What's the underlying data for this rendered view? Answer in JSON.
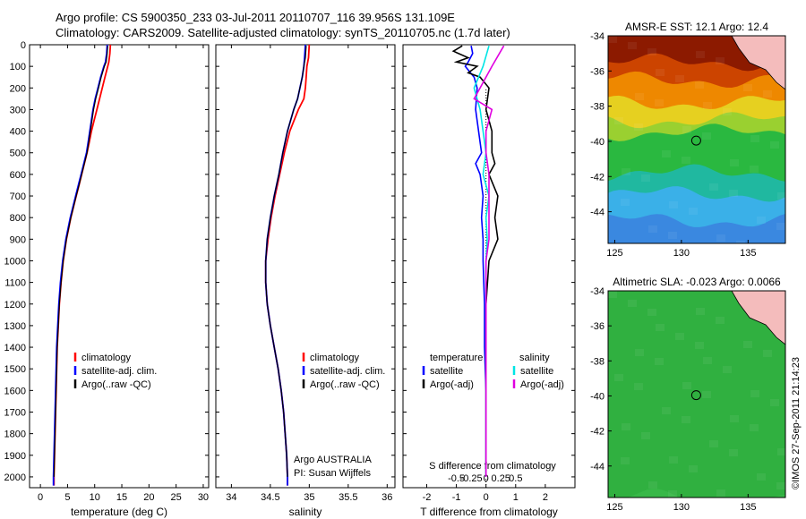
{
  "header": {
    "line1": "Argo profile: CS 5900350_233 03-Jul-2011 20110707_116 39.956S 131.109E",
    "line2": "Climatology: CARS2009. Satellite-adjusted climatology: synTS_20110705.nc (1.7d later)"
  },
  "credit": "©IMOS 27-Sep-2011 21:14:23",
  "colors": {
    "clim": "#ff0000",
    "sat": "#0000ff",
    "argo": "#000000",
    "sal_sat": "#00e5e5",
    "sal_argo": "#e000e0"
  },
  "chart_data": [
    {
      "type": "line",
      "id": "temp",
      "xlabel": "temperature (deg C)",
      "xlim": [
        -2,
        31
      ],
      "ylim": [
        0,
        2050
      ],
      "xticks": [
        0,
        5,
        10,
        15,
        20,
        25,
        30
      ],
      "xticklabels": [
        "0",
        "5",
        "10",
        "15",
        "20",
        "25",
        "30"
      ],
      "yticks": [
        0,
        100,
        200,
        300,
        400,
        500,
        600,
        700,
        800,
        900,
        1000,
        1100,
        1200,
        1300,
        1400,
        1500,
        1600,
        1700,
        1800,
        1900,
        2000
      ],
      "legend": [
        "climatology",
        "satellite-adj. clim.",
        "Argo(..raw -QC)"
      ],
      "annotations": [],
      "series": [
        {
          "name": "climatology",
          "color": "#ff0000",
          "depth": [
            0,
            40,
            80,
            100,
            150,
            200,
            250,
            300,
            350,
            400,
            450,
            500,
            550,
            600,
            650,
            700,
            800,
            900,
            1000,
            1100,
            1200,
            1300,
            1400,
            1500,
            1600,
            1700,
            1800,
            1900,
            2000,
            2040
          ],
          "values": [
            12.9,
            12.8,
            12.6,
            12.4,
            11.9,
            11.4,
            10.9,
            10.4,
            9.9,
            9.4,
            9.0,
            8.6,
            8.1,
            7.6,
            7.1,
            6.6,
            5.6,
            4.8,
            4.2,
            3.8,
            3.5,
            3.3,
            3.1,
            3.0,
            2.9,
            2.8,
            2.7,
            2.6,
            2.5,
            2.5
          ]
        },
        {
          "name": "satellite-adj. clim.",
          "color": "#0000ff",
          "depth": [
            0,
            40,
            80,
            100,
            150,
            200,
            250,
            300,
            350,
            400,
            450,
            500,
            550,
            600,
            650,
            700,
            800,
            900,
            1000,
            1100,
            1200,
            1300,
            1400,
            1500,
            1600,
            1700,
            1800,
            1900,
            2000,
            2040
          ],
          "values": [
            12.3,
            12.2,
            12.0,
            11.7,
            11.1,
            10.6,
            10.1,
            9.7,
            9.4,
            9.1,
            8.8,
            8.5,
            8.0,
            7.5,
            7.0,
            6.5,
            5.5,
            4.7,
            4.1,
            3.7,
            3.4,
            3.2,
            3.0,
            2.9,
            2.8,
            2.7,
            2.6,
            2.5,
            2.4,
            2.4
          ]
        },
        {
          "name": "Argo(..raw -QC)",
          "color": "#000000",
          "depth": [
            5,
            40,
            80,
            100,
            150,
            200,
            250,
            300,
            350,
            400,
            450,
            500,
            550,
            600,
            650,
            700,
            800,
            900,
            1000,
            1100,
            1200,
            1300,
            1400,
            1500,
            1600,
            1700,
            1800,
            1900,
            2000
          ],
          "values": [
            12.4,
            12.3,
            12.1,
            11.8,
            11.2,
            10.7,
            10.2,
            9.8,
            9.5,
            9.2,
            8.9,
            8.6,
            8.1,
            7.6,
            7.1,
            6.6,
            5.6,
            4.8,
            4.2,
            3.8,
            3.5,
            3.3,
            3.1,
            3.0,
            2.9,
            2.8,
            2.7,
            2.6,
            2.5
          ]
        }
      ]
    },
    {
      "type": "line",
      "id": "sal",
      "xlabel": "salinity",
      "xlim": [
        33.8,
        36.1
      ],
      "ylim": [
        0,
        2050
      ],
      "xticks": [
        34,
        34.5,
        35,
        35.5,
        36
      ],
      "xticklabels": [
        "34",
        "34.5",
        "35",
        "35.5",
        "36"
      ],
      "legend": [
        "climatology",
        "satellite-adj. clim.",
        "Argo(..raw -QC)"
      ],
      "annotations": [
        "Argo AUSTRALIA",
        "PI: Susan Wijffels"
      ],
      "series": [
        {
          "name": "climatology",
          "color": "#ff0000",
          "depth": [
            0,
            60,
            100,
            150,
            200,
            250,
            300,
            400,
            500,
            600,
            700,
            800,
            900,
            1000,
            1100,
            1200,
            1300,
            1400,
            1500,
            1600,
            1700,
            1800,
            1900,
            2000,
            2040
          ],
          "values": [
            35.0,
            34.99,
            34.97,
            34.96,
            34.95,
            34.93,
            34.86,
            34.75,
            34.68,
            34.62,
            34.56,
            34.51,
            34.47,
            34.44,
            34.44,
            34.46,
            34.5,
            34.55,
            34.6,
            34.64,
            34.67,
            34.69,
            34.71,
            34.72,
            34.72
          ]
        },
        {
          "name": "satellite-adj. clim.",
          "color": "#0000ff",
          "depth": [
            0,
            60,
            100,
            150,
            200,
            250,
            300,
            400,
            500,
            600,
            700,
            800,
            900,
            1000,
            1100,
            1200,
            1300,
            1400,
            1500,
            1600,
            1700,
            1800,
            1900,
            2000,
            2040
          ],
          "values": [
            34.95,
            34.94,
            34.93,
            34.91,
            34.88,
            34.85,
            34.8,
            34.72,
            34.66,
            34.61,
            34.55,
            34.5,
            34.46,
            34.44,
            34.44,
            34.46,
            34.5,
            34.55,
            34.6,
            34.64,
            34.67,
            34.69,
            34.71,
            34.72,
            34.72
          ]
        },
        {
          "name": "Argo(..raw -QC)",
          "color": "#000000",
          "depth": [
            5,
            60,
            100,
            150,
            200,
            250,
            300,
            400,
            500,
            600,
            700,
            800,
            900,
            1000,
            1100,
            1200,
            1300,
            1400,
            1500,
            1600,
            1700,
            1800,
            1900,
            2000
          ],
          "values": [
            34.96,
            34.95,
            34.93,
            34.91,
            34.88,
            34.85,
            34.8,
            34.72,
            34.66,
            34.61,
            34.55,
            34.5,
            34.46,
            34.44,
            34.44,
            34.46,
            34.5,
            34.55,
            34.6,
            34.64,
            34.67,
            34.69,
            34.71,
            34.72
          ]
        }
      ]
    },
    {
      "type": "line",
      "id": "diff",
      "xlabel": "T difference from climatology",
      "top_label": "S difference from climatology",
      "xlim": [
        -2.8,
        3.0
      ],
      "ylim": [
        0,
        2050
      ],
      "xticks": [
        -2,
        -1,
        0,
        1,
        2
      ],
      "xticklabels": [
        "-2",
        "-1",
        "0",
        "1",
        "2"
      ],
      "sxticks": [
        -0.5,
        -0.25,
        0,
        0.25,
        0.5
      ],
      "sxticklabels": [
        "-0.5",
        "-0.25",
        "0",
        "0.25",
        "0.5"
      ],
      "legend_temp": [
        "temperature",
        "satellite",
        "Argo(-adj)"
      ],
      "legend_sal": [
        "salinity",
        "satellite",
        "Argo(-adj)"
      ],
      "series": [
        {
          "name": "satellite",
          "color": "#0000ff",
          "depth": [
            5,
            40,
            80,
            100,
            150,
            200,
            300,
            400,
            500,
            550,
            600,
            700,
            800,
            900,
            1000,
            1200,
            1400,
            1600,
            1800,
            2000
          ],
          "values": [
            -0.5,
            -0.45,
            -0.6,
            -0.7,
            -0.4,
            -0.3,
            -0.35,
            -0.25,
            -0.15,
            -0.35,
            -0.2,
            -0.1,
            -0.15,
            -0.1,
            -0.1,
            -0.05,
            -0.05,
            0.0,
            0.0,
            0.0
          ]
        },
        {
          "name": "Argo(-adj)",
          "color": "#000000",
          "depth": [
            5,
            30,
            60,
            80,
            100,
            130,
            150,
            200,
            300,
            400,
            500,
            550,
            600,
            700,
            800,
            900,
            1000,
            1200,
            1400,
            1600,
            1800,
            2000
          ],
          "values": [
            -0.8,
            -1.1,
            -0.6,
            -1.0,
            -0.3,
            -0.6,
            -0.2,
            0.1,
            0.0,
            0.2,
            0.2,
            0.3,
            0.1,
            0.4,
            0.3,
            0.4,
            0.1,
            0.0,
            0.0,
            0.0,
            0.0,
            0.0
          ]
        },
        {
          "name": "salinity satellite",
          "color": "#00e5e5",
          "depth": [
            5,
            100,
            200,
            300,
            400,
            500,
            600,
            700,
            800,
            900,
            1000,
            1200,
            1500,
            2000
          ],
          "values": [
            0.05,
            -0.05,
            -0.2,
            -0.1,
            -0.05,
            0.0,
            -0.05,
            0.05,
            0.0,
            0.02,
            0.0,
            0.0,
            0.0,
            0.0
          ]
        },
        {
          "name": "salinity Argo(-adj)",
          "color": "#e000e0",
          "depth": [
            5,
            100,
            200,
            250,
            300,
            400,
            500,
            600,
            700,
            800,
            900,
            1000,
            1200,
            1500,
            2000
          ],
          "values": [
            0.3,
            0.1,
            -0.1,
            -0.2,
            0.1,
            0.0,
            0.0,
            0.05,
            0.05,
            0.05,
            0.05,
            0.0,
            0.0,
            0.0,
            0.0
          ]
        }
      ]
    },
    {
      "type": "heatmap",
      "id": "sst",
      "title": "AMSR-E SST: 12.1 Argo: 12.4",
      "xlim": [
        124.5,
        137.8
      ],
      "ylim": [
        -45.8,
        -34
      ],
      "xticks": [
        125,
        130,
        135
      ],
      "xticklabels": [
        "125",
        "130",
        "135"
      ],
      "yticks": [
        -34,
        -36,
        -38,
        -40,
        -42,
        -44
      ],
      "yticklabels": [
        "-34",
        "-36",
        "-38",
        "-40",
        "-42",
        "-44"
      ],
      "marker": {
        "lon": 131.109,
        "lat": -39.956
      },
      "bands": [
        {
          "lat_max": -34.0,
          "color": "#8c1a00"
        },
        {
          "lat_max": -35.5,
          "color": "#cc4400"
        },
        {
          "lat_max": -36.5,
          "color": "#ee8800"
        },
        {
          "lat_max": -37.8,
          "color": "#e6d020"
        },
        {
          "lat_max": -38.8,
          "color": "#9ad030"
        },
        {
          "lat_max": -39.5,
          "color": "#2ab840"
        },
        {
          "lat_max": -41.8,
          "color": "#20b8a0"
        },
        {
          "lat_max": -43.0,
          "color": "#3ab0e8"
        },
        {
          "lat_max": -44.5,
          "color": "#3a88e0"
        }
      ]
    },
    {
      "type": "heatmap",
      "id": "sla",
      "title": "Altimetric SLA: -0.023 Argo: 0.0066",
      "xlim": [
        124.5,
        137.8
      ],
      "ylim": [
        -45.8,
        -34
      ],
      "xticks": [
        125,
        130,
        135
      ],
      "xticklabels": [
        "125",
        "130",
        "135"
      ],
      "yticks": [
        -34,
        -36,
        -38,
        -40,
        -42,
        -44
      ],
      "yticklabels": [
        "-34",
        "-36",
        "-38",
        "-40",
        "-42",
        "-44"
      ],
      "marker": {
        "lon": 131.109,
        "lat": -39.956
      },
      "bands": [
        {
          "lat_max": -34.0,
          "color": "#30b040"
        },
        {
          "lat_max": -45.8,
          "color": "#38b848"
        }
      ]
    }
  ]
}
